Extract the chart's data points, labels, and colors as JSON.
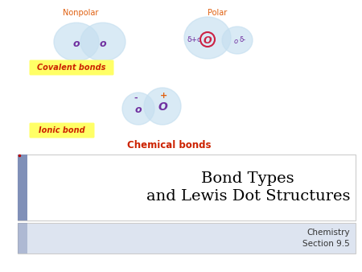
{
  "bg_color": "#ffffff",
  "title_text": "Bond Types\nand Lewis Dot Structures",
  "subtitle_text": "Chemistry\nSection 9.5",
  "nonpolar_label": "Nonpolar",
  "polar_label": "Polar",
  "covalent_label": "Covalent bonds",
  "ionic_label": "Ionic bond",
  "chemical_label": "Chemical bonds",
  "label_color_orange": "#e06010",
  "label_color_red": "#cc2200",
  "atom_color_purple": "#7030a0",
  "atom_color_red_circle": "#cc2244",
  "blob_color": "#c5dff0",
  "blob_alpha": 0.65,
  "yellow_bg": "#ffff66",
  "sidebar_color": "#8090b8",
  "title_box_color": "#ffffff",
  "subtitle_box_color": "#dde4f0",
  "title_border_color": "#cccccc",
  "fig_width": 4.5,
  "fig_height": 3.38,
  "dpi": 100
}
